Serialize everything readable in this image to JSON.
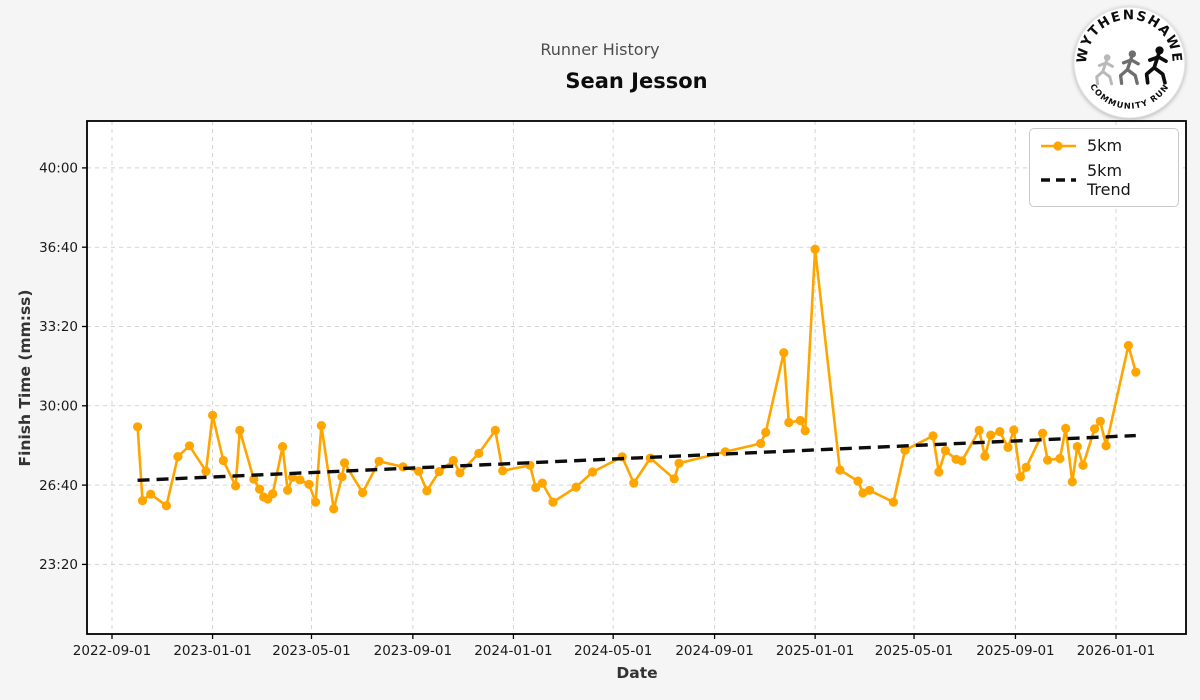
{
  "header": {
    "subtitle": "Runner History",
    "title": "Sean Jesson"
  },
  "axes": {
    "xlabel": "Date",
    "ylabel": "Finish Time (mm:ss)"
  },
  "legend": {
    "items": [
      {
        "label": "5km"
      },
      {
        "label": "5km Trend"
      }
    ]
  },
  "logo": {
    "arc_top": "WYTHENSHAWE",
    "arc_bottom": "COMMUNITY RUN"
  },
  "colors": {
    "series": "#FFA500",
    "trend": "#0d0d0d",
    "grid": "#d4d4d4",
    "spine": "#000000",
    "figure_bg": "#f5f5f6",
    "plot_bg": "#ffffff",
    "tick_label": "#1a1a1a",
    "subtitle": "#4d4d4d"
  },
  "chart_data": {
    "type": "line",
    "title": "Sean Jesson",
    "subtitle": "Runner History",
    "xlabel": "Date",
    "ylabel": "Finish Time (mm:ss)",
    "grid": true,
    "legend_position": "upper right",
    "x_tick_labels": [
      "2022-09-01",
      "2023-01-01",
      "2023-05-01",
      "2023-09-01",
      "2024-01-01",
      "2024-05-01",
      "2024-09-01",
      "2025-01-01",
      "2025-05-01",
      "2025-09-01",
      "2026-01-01"
    ],
    "y_tick_labels": [
      "23:20",
      "26:40",
      "30:00",
      "33:20",
      "36:40",
      "40:00"
    ],
    "xlim": [
      "2022-08-02",
      "2026-03-27"
    ],
    "ylim": [
      "20:25",
      "42:00"
    ],
    "series": [
      {
        "name": "5km",
        "style": "solid line with circle markers",
        "color": "#FFA500",
        "points": [
          [
            "2022-10-02",
            "29:07"
          ],
          [
            "2022-10-08",
            "26:01"
          ],
          [
            "2022-10-18",
            "26:17"
          ],
          [
            "2022-11-06",
            "25:48"
          ],
          [
            "2022-11-20",
            "27:52"
          ],
          [
            "2022-12-04",
            "28:19"
          ],
          [
            "2022-12-24",
            "27:15"
          ],
          [
            "2023-01-01",
            "29:36"
          ],
          [
            "2023-01-14",
            "27:42"
          ],
          [
            "2023-01-29",
            "26:38"
          ],
          [
            "2023-02-03",
            "28:58"
          ],
          [
            "2023-02-20",
            "26:55"
          ],
          [
            "2023-02-27",
            "26:30"
          ],
          [
            "2023-03-04",
            "26:10"
          ],
          [
            "2023-03-09",
            "26:05"
          ],
          [
            "2023-03-15",
            "26:18"
          ],
          [
            "2023-03-27",
            "28:17"
          ],
          [
            "2023-04-02",
            "26:27"
          ],
          [
            "2023-04-08",
            "27:00"
          ],
          [
            "2023-04-17",
            "26:53"
          ],
          [
            "2023-04-28",
            "26:42"
          ],
          [
            "2023-05-06",
            "25:57"
          ],
          [
            "2023-05-13",
            "29:10"
          ],
          [
            "2023-05-28",
            "25:40"
          ],
          [
            "2023-06-07",
            "27:01"
          ],
          [
            "2023-06-10",
            "27:36"
          ],
          [
            "2023-07-02",
            "26:21"
          ],
          [
            "2023-07-22",
            "27:40"
          ],
          [
            "2023-08-20",
            "27:26"
          ],
          [
            "2023-09-08",
            "27:15"
          ],
          [
            "2023-09-18",
            "26:26"
          ],
          [
            "2023-10-03",
            "27:14"
          ],
          [
            "2023-10-20",
            "27:42"
          ],
          [
            "2023-10-28",
            "27:11"
          ],
          [
            "2023-11-20",
            "28:00"
          ],
          [
            "2023-12-10",
            "28:58"
          ],
          [
            "2023-12-19",
            "27:16"
          ],
          [
            "2024-01-21",
            "27:30"
          ],
          [
            "2024-01-28",
            "26:34"
          ],
          [
            "2024-02-05",
            "26:45"
          ],
          [
            "2024-02-18",
            "25:57"
          ],
          [
            "2024-03-17",
            "26:35"
          ],
          [
            "2024-04-06",
            "27:13"
          ],
          [
            "2024-05-12",
            "27:51"
          ],
          [
            "2024-05-26",
            "26:45"
          ],
          [
            "2024-06-15",
            "27:48"
          ],
          [
            "2024-07-14",
            "26:56"
          ],
          [
            "2024-07-20",
            "27:35"
          ],
          [
            "2024-09-14",
            "28:04"
          ],
          [
            "2024-10-27",
            "28:25"
          ],
          [
            "2024-11-02",
            "28:53"
          ],
          [
            "2024-11-24",
            "32:14"
          ],
          [
            "2024-11-30",
            "29:18"
          ],
          [
            "2024-12-14",
            "29:23"
          ],
          [
            "2024-12-20",
            "28:57"
          ],
          [
            "2025-01-01",
            "36:35"
          ],
          [
            "2025-01-31",
            "27:18"
          ],
          [
            "2025-02-22",
            "26:50"
          ],
          [
            "2025-02-28",
            "26:20"
          ],
          [
            "2025-03-08",
            "26:27"
          ],
          [
            "2025-04-06",
            "25:57"
          ],
          [
            "2025-04-20",
            "28:08"
          ],
          [
            "2025-05-24",
            "28:44"
          ],
          [
            "2025-05-31",
            "27:13"
          ],
          [
            "2025-06-08",
            "28:07"
          ],
          [
            "2025-06-21",
            "27:45"
          ],
          [
            "2025-06-28",
            "27:41"
          ],
          [
            "2025-07-19",
            "28:58"
          ],
          [
            "2025-07-26",
            "27:53"
          ],
          [
            "2025-08-02",
            "28:46"
          ],
          [
            "2025-08-13",
            "28:55"
          ],
          [
            "2025-08-23",
            "28:15"
          ],
          [
            "2025-08-30",
            "28:59"
          ],
          [
            "2025-09-07",
            "27:01"
          ],
          [
            "2025-09-14",
            "27:25"
          ],
          [
            "2025-10-04",
            "28:51"
          ],
          [
            "2025-10-10",
            "27:43"
          ],
          [
            "2025-10-25",
            "27:47"
          ],
          [
            "2025-11-01",
            "29:03"
          ],
          [
            "2025-11-09",
            "26:48"
          ],
          [
            "2025-11-15",
            "28:17"
          ],
          [
            "2025-11-22",
            "27:30"
          ],
          [
            "2025-12-06",
            "29:02"
          ],
          [
            "2025-12-13",
            "29:21"
          ],
          [
            "2025-12-20",
            "28:19"
          ],
          [
            "2026-01-16",
            "32:32"
          ],
          [
            "2026-01-25",
            "31:25"
          ]
        ]
      },
      {
        "name": "5km Trend",
        "style": "dashed line",
        "color": "#0d0d0d",
        "points": [
          [
            "2022-10-02",
            "26:52"
          ],
          [
            "2026-01-25",
            "28:45"
          ]
        ]
      }
    ]
  }
}
